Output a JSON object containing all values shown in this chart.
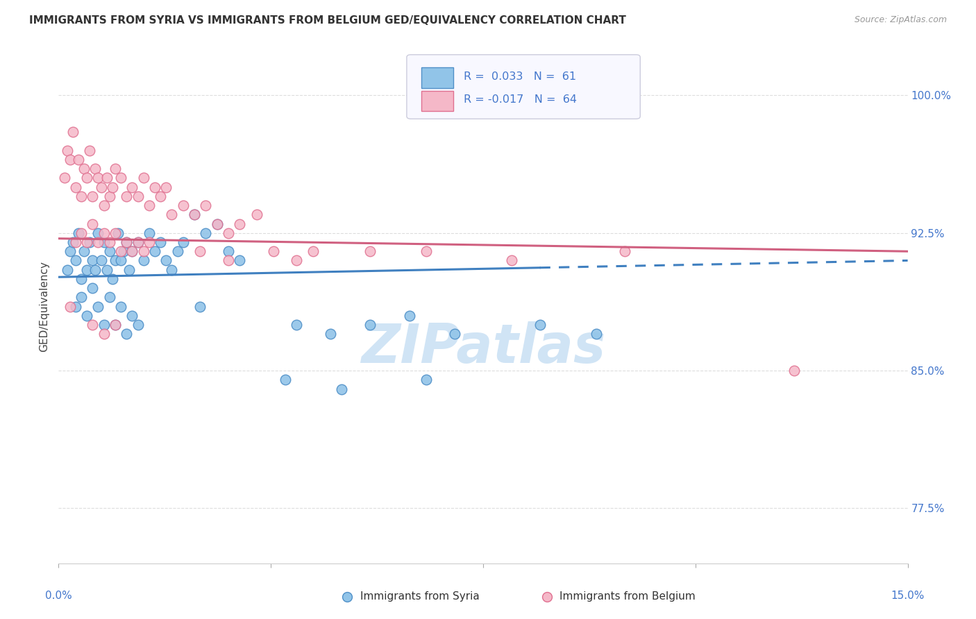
{
  "title": "IMMIGRANTS FROM SYRIA VS IMMIGRANTS FROM BELGIUM GED/EQUIVALENCY CORRELATION CHART",
  "source_text": "Source: ZipAtlas.com",
  "ylabel": "GED/Equivalency",
  "yticks": [
    77.5,
    85.0,
    92.5,
    100.0
  ],
  "ytick_labels": [
    "77.5%",
    "85.0%",
    "92.5%",
    "100.0%"
  ],
  "xlim": [
    0.0,
    15.0
  ],
  "ylim": [
    74.5,
    102.5
  ],
  "blue_R": 0.033,
  "blue_N": 61,
  "pink_R": -0.017,
  "pink_N": 64,
  "blue_color": "#91c4e8",
  "pink_color": "#f5b8c8",
  "blue_edge_color": "#5090c8",
  "pink_edge_color": "#e07090",
  "blue_line_color": "#4080c0",
  "pink_line_color": "#d06080",
  "watermark": "ZIPatlas",
  "watermark_color": "#d0e4f5",
  "title_color": "#333333",
  "source_color": "#999999",
  "tick_label_color": "#4477cc",
  "grid_color": "#dddddd",
  "legend_face_color": "#f8f8ff",
  "legend_edge_color": "#ccccdd",
  "blue_line_y0": 90.1,
  "blue_line_y15": 91.0,
  "pink_line_y0": 92.2,
  "pink_line_y15": 91.5,
  "blue_solid_x_end": 8.5,
  "blue_scatter_x": [
    0.15,
    0.2,
    0.25,
    0.3,
    0.35,
    0.4,
    0.45,
    0.5,
    0.55,
    0.6,
    0.65,
    0.7,
    0.75,
    0.8,
    0.85,
    0.9,
    0.95,
    1.0,
    1.05,
    1.1,
    1.15,
    1.2,
    1.25,
    1.3,
    1.4,
    1.5,
    1.6,
    1.7,
    1.8,
    1.9,
    2.0,
    2.1,
    2.2,
    2.4,
    2.6,
    2.8,
    3.0,
    3.2,
    0.3,
    0.4,
    0.5,
    0.6,
    0.7,
    0.8,
    0.9,
    1.0,
    1.1,
    1.2,
    1.3,
    1.4,
    4.2,
    4.8,
    5.5,
    6.2,
    7.0,
    8.5,
    4.0,
    5.0,
    6.5,
    9.5,
    2.5
  ],
  "blue_scatter_y": [
    90.5,
    91.5,
    92.0,
    91.0,
    92.5,
    90.0,
    91.5,
    90.5,
    92.0,
    91.0,
    90.5,
    92.5,
    91.0,
    92.0,
    90.5,
    91.5,
    90.0,
    91.0,
    92.5,
    91.0,
    91.5,
    92.0,
    90.5,
    91.5,
    92.0,
    91.0,
    92.5,
    91.5,
    92.0,
    91.0,
    90.5,
    91.5,
    92.0,
    93.5,
    92.5,
    93.0,
    91.5,
    91.0,
    88.5,
    89.0,
    88.0,
    89.5,
    88.5,
    87.5,
    89.0,
    87.5,
    88.5,
    87.0,
    88.0,
    87.5,
    87.5,
    87.0,
    87.5,
    88.0,
    87.0,
    87.5,
    84.5,
    84.0,
    84.5,
    87.0,
    88.5
  ],
  "pink_scatter_x": [
    0.1,
    0.15,
    0.2,
    0.25,
    0.3,
    0.35,
    0.4,
    0.45,
    0.5,
    0.55,
    0.6,
    0.65,
    0.7,
    0.75,
    0.8,
    0.85,
    0.9,
    0.95,
    1.0,
    1.1,
    1.2,
    1.3,
    1.4,
    1.5,
    1.6,
    1.7,
    1.8,
    1.9,
    2.0,
    2.2,
    2.4,
    2.6,
    2.8,
    3.0,
    3.2,
    3.5,
    0.3,
    0.4,
    0.5,
    0.6,
    0.7,
    0.8,
    0.9,
    1.0,
    1.1,
    1.2,
    1.3,
    1.4,
    1.5,
    1.6,
    4.5,
    5.5,
    6.5,
    8.0,
    10.0,
    13.0,
    2.5,
    3.0,
    3.8,
    4.2,
    0.2,
    0.6,
    0.8,
    1.0
  ],
  "pink_scatter_y": [
    95.5,
    97.0,
    96.5,
    98.0,
    95.0,
    96.5,
    94.5,
    96.0,
    95.5,
    97.0,
    94.5,
    96.0,
    95.5,
    95.0,
    94.0,
    95.5,
    94.5,
    95.0,
    96.0,
    95.5,
    94.5,
    95.0,
    94.5,
    95.5,
    94.0,
    95.0,
    94.5,
    95.0,
    93.5,
    94.0,
    93.5,
    94.0,
    93.0,
    92.5,
    93.0,
    93.5,
    92.0,
    92.5,
    92.0,
    93.0,
    92.0,
    92.5,
    92.0,
    92.5,
    91.5,
    92.0,
    91.5,
    92.0,
    91.5,
    92.0,
    91.5,
    91.5,
    91.5,
    91.0,
    91.5,
    85.0,
    91.5,
    91.0,
    91.5,
    91.0,
    88.5,
    87.5,
    87.0,
    87.5
  ]
}
